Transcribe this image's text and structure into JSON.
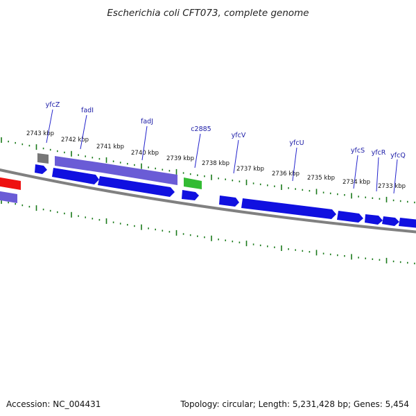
{
  "title": "Escherichia coli CFT073, complete genome",
  "footer": {
    "accession": "Accession: NC_004431",
    "topology": "Topology: circular; Length: 5,231,428 bp; Genes: 5,454"
  },
  "colors": {
    "forward_gene": "#1010e0",
    "reverse_gene": "#6a5cd6",
    "rna_gene": "#33bb33",
    "pseudo_gene": "#777777",
    "highlight_gene": "#ee1111",
    "backbone": "#808080",
    "tick": "#1a7a1a",
    "label_line": "#2222cc"
  },
  "scale_labels": [
    "2743 kbp",
    "2742 kbp",
    "2741 kbp",
    "2740 kbp",
    "2739 kbp",
    "2738 kbp",
    "2737 kbp",
    "2736 kbp",
    "2735 kbp",
    "2734 kbp",
    "2733 kbp"
  ],
  "gene_labels": [
    "yfcZ",
    "fadI",
    "fadJ",
    "c2885",
    "yfcV",
    "yfcU",
    "yfcS",
    "yfcR",
    "yfcQ"
  ]
}
